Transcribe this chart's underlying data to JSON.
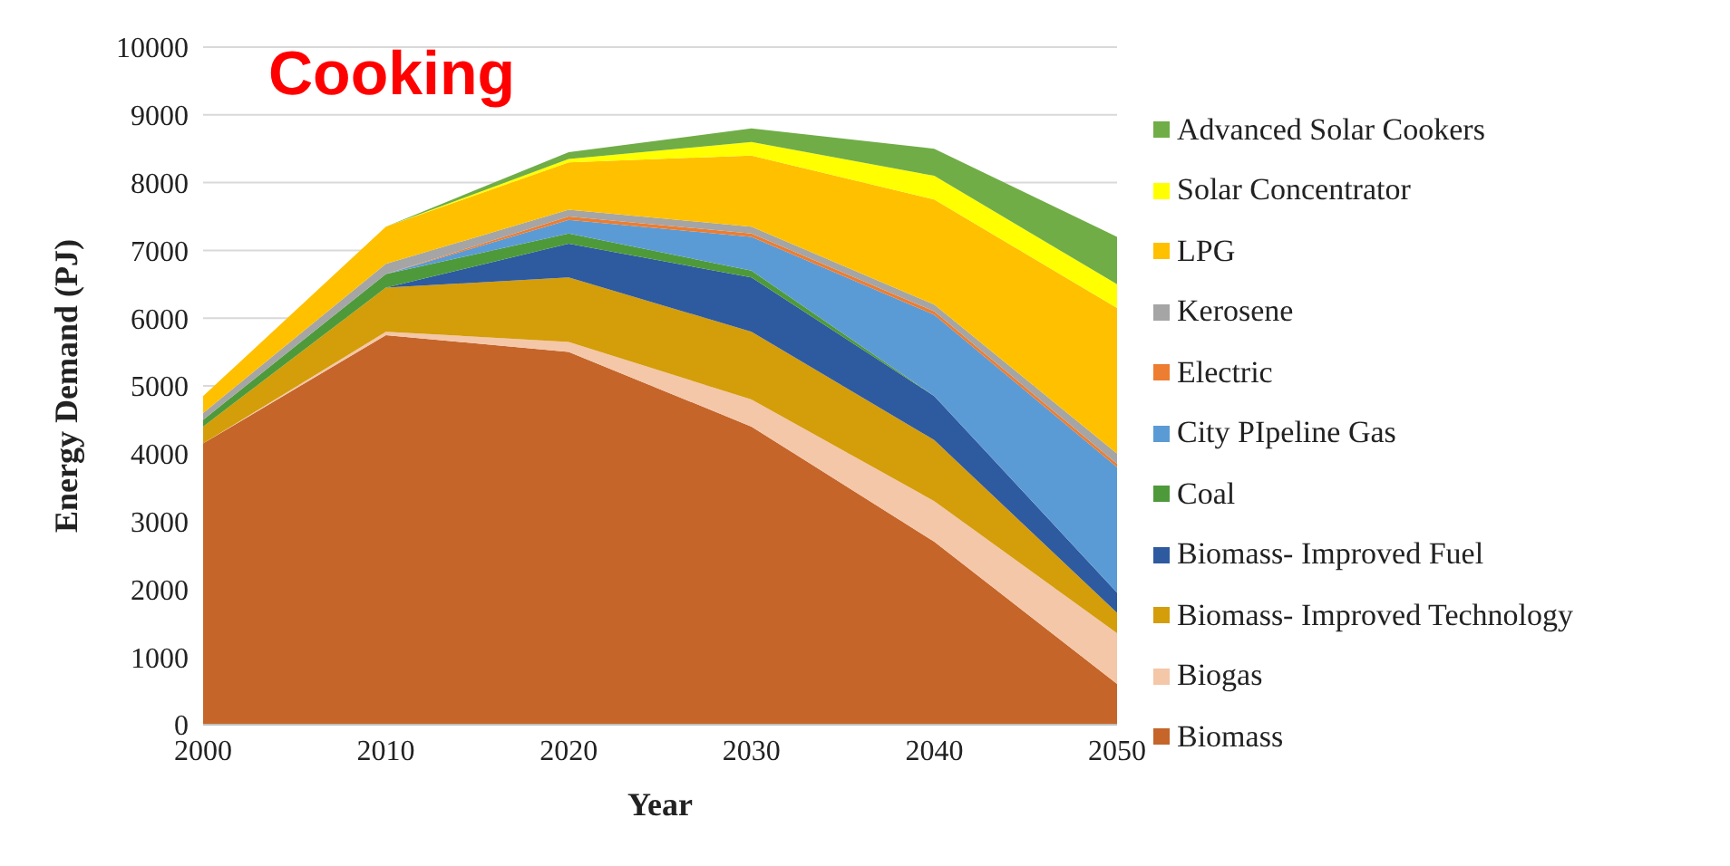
{
  "chart_data": {
    "type": "area",
    "title": "Cooking",
    "xlabel": "Year",
    "ylabel": "Energy Demand (PJ)",
    "stacked": true,
    "grid": "y",
    "legend": "right",
    "x": [
      2000,
      2010,
      2020,
      2030,
      2040,
      2050
    ],
    "xlim": [
      2000,
      2050
    ],
    "xticks": [
      2000,
      2010,
      2020,
      2030,
      2040,
      2050
    ],
    "ylim": [
      0,
      10000
    ],
    "yticks": [
      0,
      1000,
      2000,
      3000,
      4000,
      5000,
      6000,
      7000,
      8000,
      9000,
      10000
    ],
    "series": [
      {
        "name": "Biomass",
        "color": "#c5652a",
        "values": [
          4150,
          5750,
          5500,
          4400,
          2700,
          600
        ]
      },
      {
        "name": "Biogas",
        "color": "#f4c7a8",
        "values": [
          0,
          50,
          150,
          400,
          600,
          750
        ]
      },
      {
        "name": "Biomass- Improved Technology",
        "color": "#d49d0a",
        "values": [
          250,
          650,
          950,
          1000,
          900,
          300
        ]
      },
      {
        "name": "Biomass- Improved Fuel",
        "color": "#2e5aa0",
        "values": [
          0,
          0,
          500,
          800,
          650,
          300
        ]
      },
      {
        "name": "Coal",
        "color": "#4e9a3a",
        "values": [
          100,
          200,
          150,
          100,
          0,
          0
        ]
      },
      {
        "name": "City PIpeline Gas",
        "color": "#5b9bd5",
        "values": [
          0,
          0,
          200,
          500,
          1200,
          1850
        ]
      },
      {
        "name": "Electric",
        "color": "#ed7d31",
        "values": [
          0,
          0,
          50,
          50,
          50,
          50
        ]
      },
      {
        "name": "Kerosene",
        "color": "#a5a5a5",
        "values": [
          100,
          150,
          100,
          100,
          100,
          150
        ]
      },
      {
        "name": "LPG",
        "color": "#ffc000",
        "values": [
          250,
          550,
          700,
          1050,
          1550,
          2150
        ]
      },
      {
        "name": "Solar Concentrator",
        "color": "#ffff00",
        "values": [
          0,
          0,
          50,
          200,
          350,
          350
        ]
      },
      {
        "name": "Advanced Solar Cookers",
        "color": "#70ad47",
        "values": [
          0,
          0,
          100,
          200,
          400,
          700
        ]
      }
    ]
  }
}
